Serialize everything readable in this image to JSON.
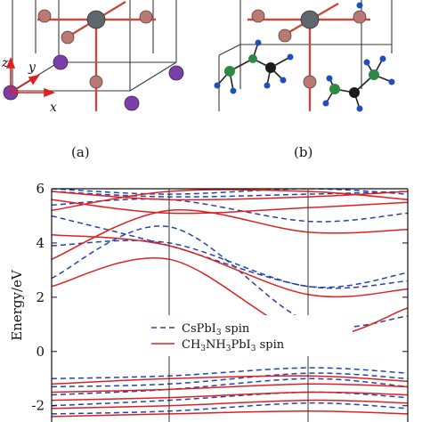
{
  "panels": {
    "a": {
      "label": "(a)",
      "axes": [
        "z",
        "y",
        "x"
      ]
    },
    "b": {
      "label": "(b)"
    }
  },
  "colors": {
    "pb": "#5f676c",
    "i": "#b87a72",
    "cs": "#7a3fa8",
    "c": "#1b1b1b",
    "n": "#1e4fc0",
    "h": "#2c8a45",
    "series_cs": "#2244aa",
    "series_ch": "#e02020"
  },
  "chart_data": {
    "type": "line",
    "ylabel": "Energy/eV",
    "ylim": [
      -2.6,
      6
    ],
    "yticks": [
      6,
      4,
      2,
      0,
      -2
    ],
    "kpath_breaks": [
      0.0,
      0.33,
      0.72,
      1.0
    ],
    "legend": {
      "placement": "center-right",
      "entries": [
        {
          "key": "cs",
          "style": "dashed",
          "label_parts": [
            "CsPbI",
            "3",
            " spin"
          ]
        },
        {
          "key": "ch",
          "style": "solid",
          "label_parts": [
            "CH",
            "3",
            "NH",
            "3",
            "PbI",
            "3",
            " spin"
          ]
        }
      ]
    },
    "series": [
      {
        "key": "cs_conduction",
        "style": "dashed",
        "bands": [
          {
            "x": [
              0,
              0.33,
              0.72,
              1.0
            ],
            "y": [
              2.7,
              4.6,
              1.1,
              1.3
            ]
          },
          {
            "x": [
              0,
              0.33,
              0.72,
              1.0
            ],
            "y": [
              3.9,
              4.0,
              2.4,
              2.9
            ]
          },
          {
            "x": [
              0,
              0.33,
              0.72,
              1.0
            ],
            "y": [
              5.0,
              3.9,
              2.4,
              2.6
            ]
          },
          {
            "x": [
              0,
              0.33,
              0.72,
              1.0
            ],
            "y": [
              5.9,
              5.7,
              5.8,
              5.9
            ]
          },
          {
            "x": [
              0,
              0.33,
              0.72,
              1.0
            ],
            "y": [
              5.4,
              5.6,
              4.8,
              5.1
            ]
          },
          {
            "x": [
              0,
              0.33,
              0.72,
              1.0
            ],
            "y": [
              6.0,
              5.8,
              6.0,
              5.8
            ]
          }
        ]
      },
      {
        "key": "ch_conduction",
        "style": "solid",
        "bands": [
          {
            "x": [
              0,
              0.33,
              0.72,
              1.0
            ],
            "y": [
              2.4,
              3.4,
              0.6,
              1.6
            ]
          },
          {
            "x": [
              0,
              0.33,
              0.72,
              1.0
            ],
            "y": [
              4.3,
              3.9,
              2.1,
              2.3
            ]
          },
          {
            "x": [
              0,
              0.33,
              0.72,
              1.0
            ],
            "y": [
              3.4,
              5.2,
              4.4,
              4.5
            ]
          },
          {
            "x": [
              0,
              0.33,
              0.72,
              1.0
            ],
            "y": [
              5.6,
              5.1,
              5.3,
              5.5
            ]
          },
          {
            "x": [
              0,
              0.33,
              0.72,
              1.0
            ],
            "y": [
              5.9,
              5.6,
              5.7,
              5.9
            ]
          },
          {
            "x": [
              0,
              0.33,
              0.72,
              1.0
            ],
            "y": [
              5.2,
              5.9,
              5.9,
              5.6
            ]
          }
        ]
      },
      {
        "key": "cs_valence",
        "style": "dashed",
        "bands": [
          {
            "x": [
              0,
              0.33,
              0.72,
              1.0
            ],
            "y": [
              -1.0,
              -0.9,
              -0.6,
              -0.8
            ]
          },
          {
            "x": [
              0,
              0.33,
              0.72,
              1.0
            ],
            "y": [
              -1.3,
              -1.2,
              -0.8,
              -1.0
            ]
          },
          {
            "x": [
              0,
              0.33,
              0.72,
              1.0
            ],
            "y": [
              -1.6,
              -1.4,
              -1.0,
              -1.3
            ]
          },
          {
            "x": [
              0,
              0.33,
              0.72,
              1.0
            ],
            "y": [
              -2.0,
              -1.8,
              -1.5,
              -1.7
            ]
          },
          {
            "x": [
              0,
              0.33,
              0.72,
              1.0
            ],
            "y": [
              -2.3,
              -2.2,
              -1.9,
              -2.1
            ]
          }
        ]
      },
      {
        "key": "ch_valence",
        "style": "solid",
        "bands": [
          {
            "x": [
              0,
              0.33,
              0.72,
              1.0
            ],
            "y": [
              -1.2,
              -1.0,
              -0.9,
              -1.1
            ]
          },
          {
            "x": [
              0,
              0.33,
              0.72,
              1.0
            ],
            "y": [
              -1.5,
              -1.4,
              -1.2,
              -1.3
            ]
          },
          {
            "x": [
              0,
              0.33,
              0.72,
              1.0
            ],
            "y": [
              -1.8,
              -1.7,
              -1.5,
              -1.6
            ]
          },
          {
            "x": [
              0,
              0.33,
              0.72,
              1.0
            ],
            "y": [
              -2.1,
              -2.0,
              -1.8,
              -1.9
            ]
          },
          {
            "x": [
              0,
              0.33,
              0.72,
              1.0
            ],
            "y": [
              -2.4,
              -2.3,
              -2.2,
              -2.3
            ]
          }
        ]
      }
    ]
  }
}
